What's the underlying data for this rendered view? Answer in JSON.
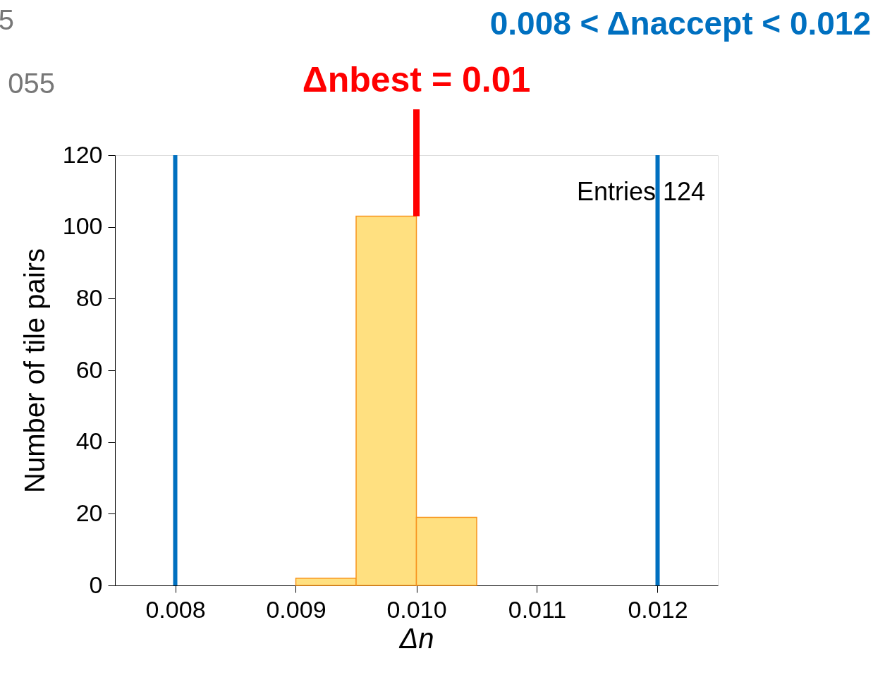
{
  "chart_data": {
    "type": "histogram",
    "xlabel": "Δn",
    "ylabel": "Number of tile pairs",
    "bins": [
      0.009,
      0.0095,
      0.01,
      0.0105
    ],
    "values": [
      2,
      103,
      19
    ],
    "color": "#ffe080",
    "xlim": [
      0.0075,
      0.0125
    ],
    "xticks": [
      0.008,
      0.009,
      {
        "value": 0.01,
        "label": "0.010"
      },
      0.011,
      0.012
    ],
    "ylim": [
      0,
      120
    ],
    "yticks": [
      0,
      20,
      40,
      60,
      80,
      100,
      120
    ],
    "grid": false,
    "ref_lines": [
      {
        "axis": "x",
        "value": 0.008,
        "label": null,
        "color": "#0070c0"
      },
      {
        "axis": "x",
        "value": 0.012,
        "label": null,
        "color": "#0070c0"
      }
    ],
    "annotations": [
      "Entries  124",
      "0.008 < Δnaccept < 0.012",
      {
        "text": "Δnbest = 0.01",
        "x": 0.01,
        "y": 103
      },
      "5",
      "055"
    ]
  }
}
